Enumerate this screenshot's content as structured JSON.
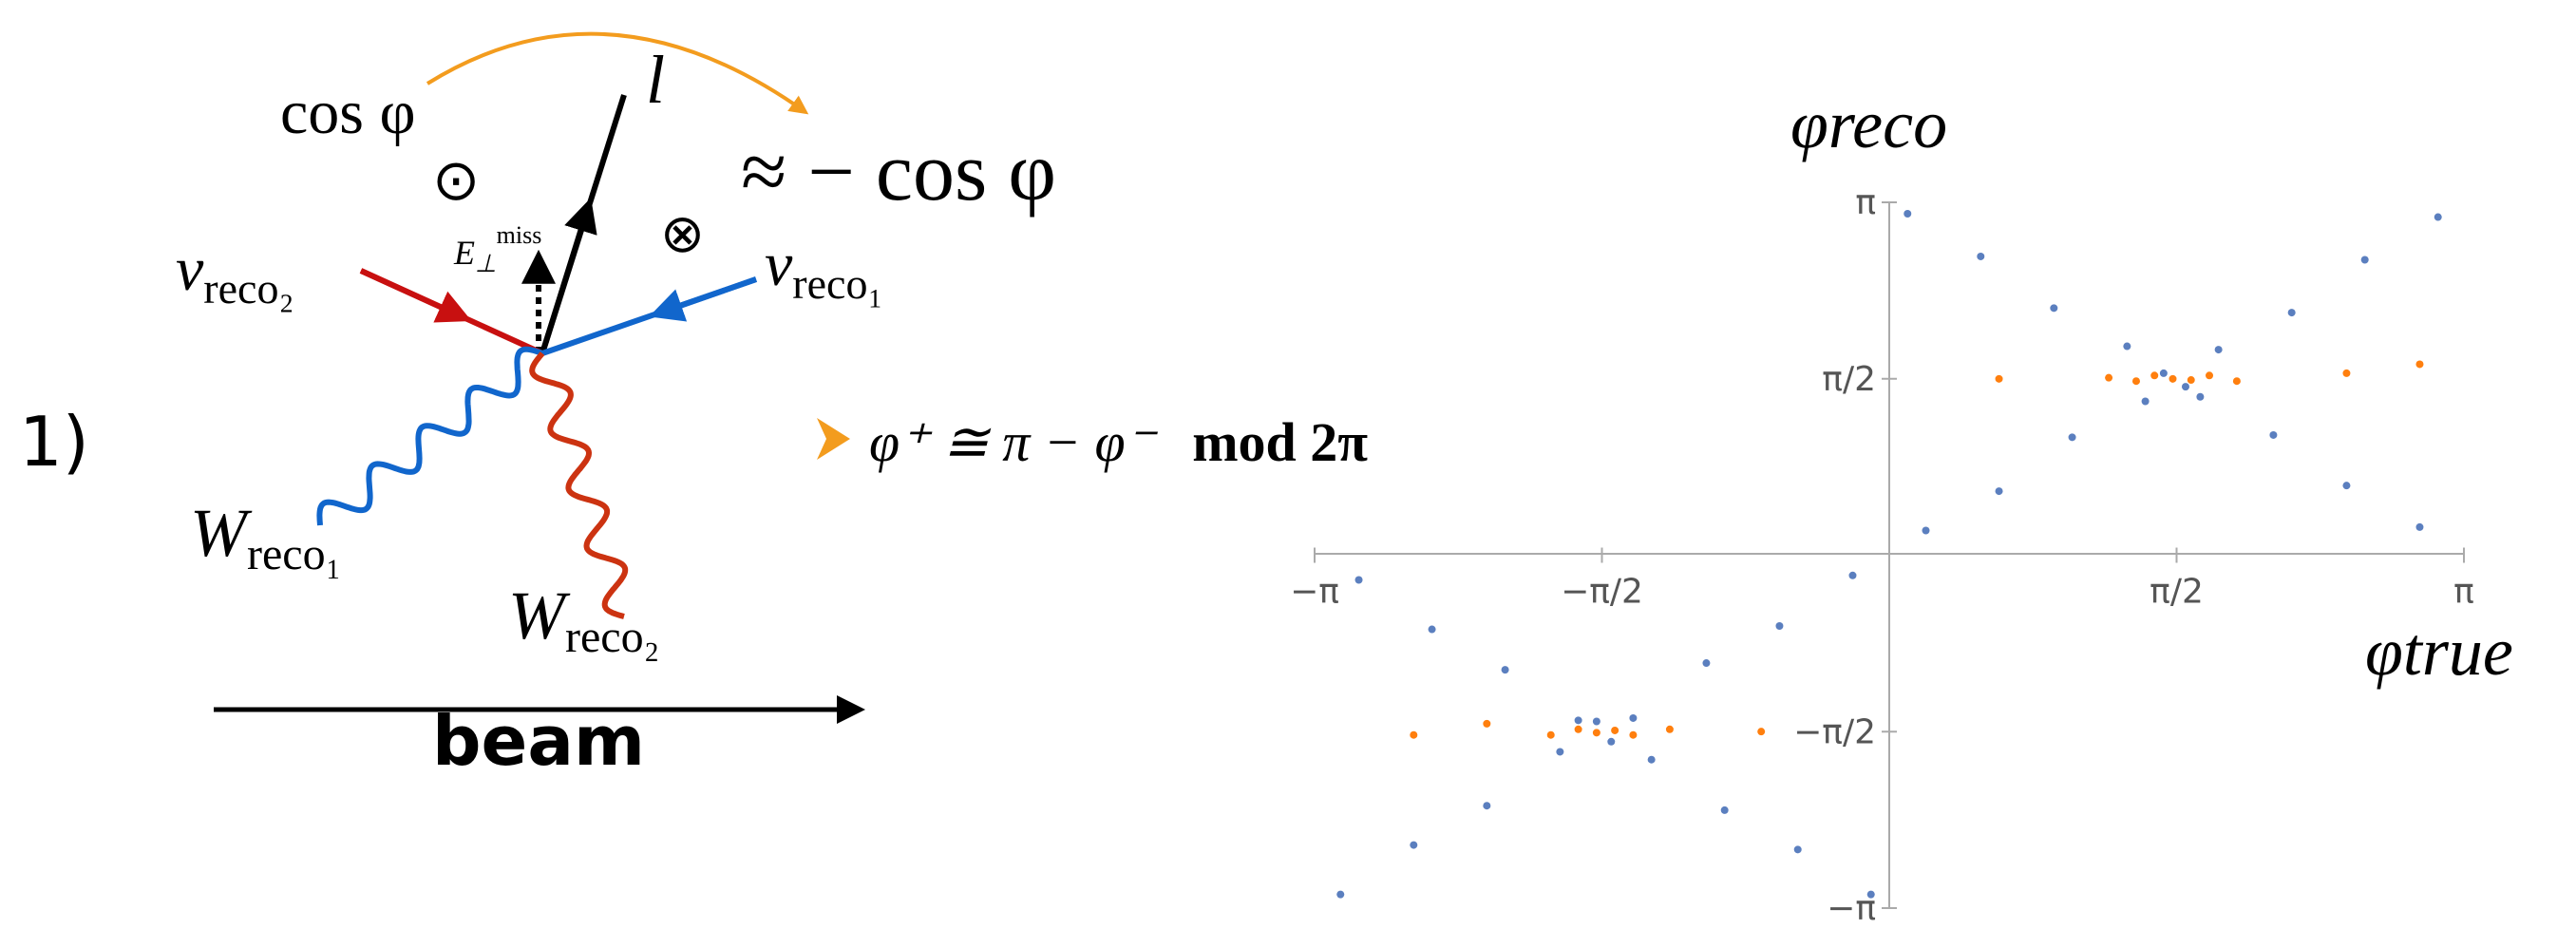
{
  "diagram": {
    "panel_label": "1)",
    "cos_phi": "cos φ",
    "approx": "≈ − cos φ",
    "lepton": "l",
    "odot": "⊙",
    "otimes": "⊗",
    "emiss": {
      "main": "E",
      "sub": "⊥",
      "sup": "miss"
    },
    "nu_reco2": {
      "main": "ν",
      "sub": "reco₂"
    },
    "nu_reco1": {
      "main": "ν",
      "sub": "reco₁"
    },
    "w_reco1": {
      "main": "W",
      "sub": "reco₁"
    },
    "w_reco2": {
      "main": "W",
      "sub": "reco₂"
    },
    "beam": "beam",
    "relation": {
      "lhs": "φ⁺ ≅ π − φ⁻",
      "mod": "mod 2π"
    }
  },
  "chart_data": {
    "type": "scatter",
    "xlabel": "φtrue",
    "ylabel": "φreco",
    "xlim": [
      -3.1416,
      3.1416
    ],
    "ylim": [
      -3.1416,
      3.1416
    ],
    "xticks": [
      {
        "value": -3.1416,
        "label": "−π"
      },
      {
        "value": -1.5708,
        "label": "−π/2"
      },
      {
        "value": 1.5708,
        "label": "π/2"
      },
      {
        "value": 3.1416,
        "label": "π"
      }
    ],
    "yticks": [
      {
        "value": -3.1416,
        "label": "−π"
      },
      {
        "value": -1.5708,
        "label": "−π/2"
      },
      {
        "value": 1.5708,
        "label": "π/2"
      },
      {
        "value": 3.1416,
        "label": "π"
      }
    ],
    "series": [
      {
        "color": "#5b7fbf",
        "x": [
          -3.0,
          -2.6,
          -2.2,
          -1.8,
          -1.4,
          -1.0,
          -0.6,
          -0.2,
          0.2,
          0.6,
          1.0,
          1.4,
          1.8,
          2.2,
          2.6,
          3.0,
          0.1,
          0.5,
          0.9,
          1.3,
          1.7,
          2.1,
          2.5,
          2.9,
          -0.1,
          -0.5,
          -0.9,
          -1.3,
          -1.7,
          -2.1,
          -2.5,
          -2.9,
          1.5,
          1.62,
          -1.52,
          -1.6
        ],
        "values": [
          -3.02,
          -2.58,
          -2.23,
          -1.75,
          -1.45,
          -0.96,
          -0.63,
          -0.18,
          0.22,
          0.57,
          1.05,
          1.37,
          1.83,
          2.16,
          2.63,
          3.01,
          3.04,
          2.66,
          2.2,
          1.86,
          1.41,
          1.07,
          0.62,
          0.25,
          -3.02,
          -2.62,
          -2.27,
          -1.82,
          -1.47,
          -1.02,
          -0.66,
          -0.22,
          1.62,
          1.5,
          -1.66,
          -1.48
        ]
      },
      {
        "color": "#ff7f0e",
        "x": [
          1.2,
          1.35,
          1.45,
          1.55,
          1.65,
          1.75,
          1.9,
          0.6,
          2.5,
          2.9,
          -1.2,
          -1.4,
          -1.5,
          -1.6,
          -1.7,
          -1.85,
          -0.7,
          -2.6,
          -2.2
        ],
        "values": [
          1.58,
          1.55,
          1.6,
          1.57,
          1.56,
          1.6,
          1.55,
          1.57,
          1.62,
          1.7,
          -1.55,
          -1.6,
          -1.56,
          -1.58,
          -1.55,
          -1.6,
          -1.57,
          -1.6,
          -1.5
        ]
      }
    ]
  }
}
